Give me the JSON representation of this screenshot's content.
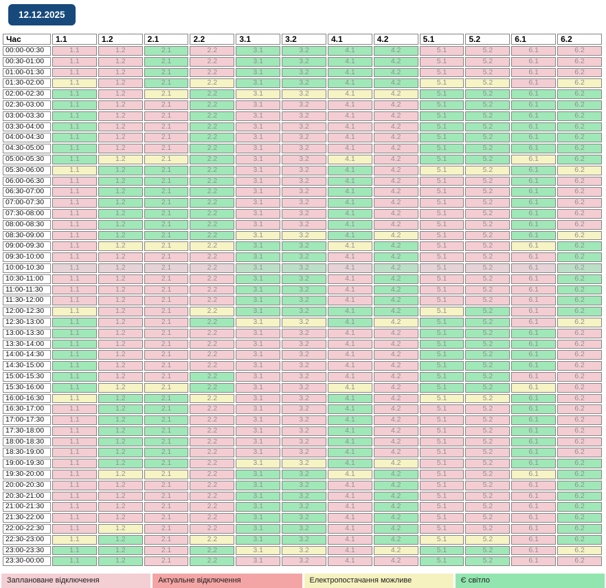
{
  "date_badge": "12.12.2025",
  "colors": {
    "badge_bg": "#17497b",
    "planned": "#f4cdd3",
    "actual": "#f2a6a6",
    "possible": "#f6f3c4",
    "light": "#a0e8b8",
    "legend_planned": "#f3ced3",
    "legend_actual": "#f3a5a5",
    "legend_possible": "#f5f2c0",
    "legend_light": "#92e5af"
  },
  "table": {
    "time_header": "Час",
    "group_headers": [
      "1.1",
      "1.2",
      "2.1",
      "2.2",
      "3.1",
      "3.2",
      "4.1",
      "4.2",
      "5.1",
      "5.2",
      "6.1",
      "6.2"
    ],
    "rows": [
      {
        "time": "00:00-00:30",
        "cells": [
          "P",
          "P",
          "G",
          "P",
          "G",
          "G",
          "G",
          "G",
          "P",
          "P",
          "P",
          "P"
        ],
        "current": false
      },
      {
        "time": "00:30-01:00",
        "cells": [
          "P",
          "P",
          "G",
          "P",
          "G",
          "G",
          "G",
          "G",
          "P",
          "P",
          "P",
          "P"
        ],
        "current": false
      },
      {
        "time": "01:00-01:30",
        "cells": [
          "P",
          "P",
          "G",
          "P",
          "G",
          "G",
          "G",
          "G",
          "P",
          "P",
          "P",
          "P"
        ],
        "current": false
      },
      {
        "time": "01:30-02:00",
        "cells": [
          "Y",
          "P",
          "G",
          "Y",
          "G",
          "G",
          "G",
          "G",
          "Y",
          "Y",
          "P",
          "Y"
        ],
        "current": false
      },
      {
        "time": "02:00-02:30",
        "cells": [
          "G",
          "P",
          "Y",
          "G",
          "Y",
          "Y",
          "Y",
          "Y",
          "G",
          "G",
          "G",
          "G"
        ],
        "current": false
      },
      {
        "time": "02:30-03:00",
        "cells": [
          "G",
          "P",
          "P",
          "G",
          "P",
          "P",
          "P",
          "P",
          "G",
          "G",
          "G",
          "G"
        ],
        "current": false
      },
      {
        "time": "03:00-03:30",
        "cells": [
          "G",
          "P",
          "P",
          "G",
          "P",
          "P",
          "P",
          "P",
          "G",
          "G",
          "G",
          "G"
        ],
        "current": false
      },
      {
        "time": "03:30-04:00",
        "cells": [
          "G",
          "P",
          "P",
          "G",
          "P",
          "P",
          "P",
          "P",
          "G",
          "G",
          "G",
          "G"
        ],
        "current": false
      },
      {
        "time": "04:00-04:30",
        "cells": [
          "G",
          "P",
          "P",
          "G",
          "P",
          "P",
          "P",
          "P",
          "G",
          "G",
          "G",
          "G"
        ],
        "current": false
      },
      {
        "time": "04:30-05:00",
        "cells": [
          "G",
          "P",
          "P",
          "G",
          "P",
          "P",
          "P",
          "P",
          "G",
          "G",
          "G",
          "G"
        ],
        "current": false
      },
      {
        "time": "05:00-05:30",
        "cells": [
          "G",
          "Y",
          "Y",
          "G",
          "P",
          "P",
          "Y",
          "P",
          "G",
          "G",
          "Y",
          "G"
        ],
        "current": false
      },
      {
        "time": "05:30-06:00",
        "cells": [
          "Y",
          "G",
          "G",
          "G",
          "P",
          "P",
          "G",
          "P",
          "Y",
          "Y",
          "G",
          "Y"
        ],
        "current": false
      },
      {
        "time": "06:00-06:30",
        "cells": [
          "P",
          "G",
          "G",
          "G",
          "P",
          "P",
          "G",
          "P",
          "P",
          "P",
          "G",
          "P"
        ],
        "current": false
      },
      {
        "time": "06:30-07:00",
        "cells": [
          "P",
          "G",
          "G",
          "G",
          "P",
          "P",
          "G",
          "P",
          "P",
          "P",
          "G",
          "P"
        ],
        "current": false
      },
      {
        "time": "07:00-07:30",
        "cells": [
          "P",
          "G",
          "G",
          "G",
          "P",
          "P",
          "G",
          "P",
          "P",
          "P",
          "G",
          "P"
        ],
        "current": false
      },
      {
        "time": "07:30-08:00",
        "cells": [
          "P",
          "G",
          "G",
          "G",
          "P",
          "P",
          "G",
          "P",
          "P",
          "P",
          "G",
          "P"
        ],
        "current": false
      },
      {
        "time": "08:00-08:30",
        "cells": [
          "P",
          "G",
          "G",
          "G",
          "P",
          "P",
          "G",
          "P",
          "P",
          "P",
          "G",
          "P"
        ],
        "current": false
      },
      {
        "time": "08:30-09:00",
        "cells": [
          "P",
          "G",
          "G",
          "G",
          "Y",
          "Y",
          "G",
          "Y",
          "P",
          "P",
          "G",
          "Y"
        ],
        "current": false
      },
      {
        "time": "09:00-09:30",
        "cells": [
          "P",
          "Y",
          "Y",
          "Y",
          "G",
          "G",
          "Y",
          "G",
          "P",
          "P",
          "Y",
          "G"
        ],
        "current": false
      },
      {
        "time": "09:30-10:00",
        "cells": [
          "P",
          "P",
          "P",
          "P",
          "G",
          "G",
          "P",
          "G",
          "P",
          "P",
          "P",
          "G"
        ],
        "current": false
      },
      {
        "time": "10:00-10:30",
        "cells": [
          "P",
          "P",
          "P",
          "P",
          "G",
          "G",
          "P",
          "G",
          "P",
          "P",
          "P",
          "G"
        ],
        "current": true
      },
      {
        "time": "10:30-11:00",
        "cells": [
          "P",
          "P",
          "P",
          "P",
          "G",
          "G",
          "P",
          "G",
          "P",
          "P",
          "P",
          "G"
        ],
        "current": false
      },
      {
        "time": "11:00-11:30",
        "cells": [
          "P",
          "P",
          "P",
          "P",
          "G",
          "G",
          "P",
          "G",
          "P",
          "P",
          "P",
          "G"
        ],
        "current": false
      },
      {
        "time": "11:30-12:00",
        "cells": [
          "P",
          "P",
          "P",
          "P",
          "G",
          "G",
          "P",
          "G",
          "P",
          "P",
          "P",
          "G"
        ],
        "current": false
      },
      {
        "time": "12:00-12:30",
        "cells": [
          "Y",
          "P",
          "P",
          "Y",
          "G",
          "G",
          "G",
          "G",
          "Y",
          "G",
          "P",
          "G"
        ],
        "current": false
      },
      {
        "time": "12:30-13:00",
        "cells": [
          "G",
          "P",
          "P",
          "G",
          "Y",
          "Y",
          "G",
          "Y",
          "G",
          "G",
          "P",
          "Y"
        ],
        "current": false
      },
      {
        "time": "13:00-13:30",
        "cells": [
          "G",
          "P",
          "P",
          "P",
          "P",
          "P",
          "P",
          "P",
          "G",
          "G",
          "G",
          "P"
        ],
        "current": false
      },
      {
        "time": "13:30-14:00",
        "cells": [
          "G",
          "P",
          "P",
          "P",
          "P",
          "P",
          "P",
          "P",
          "G",
          "G",
          "G",
          "P"
        ],
        "current": false
      },
      {
        "time": "14:00-14:30",
        "cells": [
          "G",
          "P",
          "P",
          "P",
          "P",
          "P",
          "P",
          "P",
          "G",
          "G",
          "G",
          "P"
        ],
        "current": false
      },
      {
        "time": "14:30-15:00",
        "cells": [
          "G",
          "P",
          "P",
          "P",
          "P",
          "P",
          "P",
          "P",
          "G",
          "G",
          "G",
          "P"
        ],
        "current": false
      },
      {
        "time": "15:00-15:30",
        "cells": [
          "G",
          "P",
          "P",
          "G",
          "P",
          "P",
          "P",
          "P",
          "G",
          "G",
          "P",
          "P"
        ],
        "current": false
      },
      {
        "time": "15:30-16:00",
        "cells": [
          "G",
          "Y",
          "Y",
          "G",
          "P",
          "P",
          "Y",
          "P",
          "G",
          "G",
          "Y",
          "P"
        ],
        "current": false
      },
      {
        "time": "16:00-16:30",
        "cells": [
          "Y",
          "G",
          "G",
          "Y",
          "P",
          "P",
          "G",
          "P",
          "Y",
          "Y",
          "G",
          "P"
        ],
        "current": false
      },
      {
        "time": "16:30-17:00",
        "cells": [
          "P",
          "G",
          "G",
          "P",
          "P",
          "P",
          "G",
          "P",
          "P",
          "P",
          "G",
          "P"
        ],
        "current": false
      },
      {
        "time": "17:00-17:30",
        "cells": [
          "P",
          "G",
          "G",
          "P",
          "P",
          "P",
          "G",
          "P",
          "P",
          "P",
          "G",
          "P"
        ],
        "current": false
      },
      {
        "time": "17:30-18:00",
        "cells": [
          "P",
          "G",
          "G",
          "P",
          "P",
          "P",
          "G",
          "P",
          "P",
          "P",
          "G",
          "P"
        ],
        "current": false
      },
      {
        "time": "18:00-18:30",
        "cells": [
          "P",
          "G",
          "G",
          "P",
          "P",
          "P",
          "G",
          "P",
          "P",
          "P",
          "G",
          "P"
        ],
        "current": false
      },
      {
        "time": "18:30-19:00",
        "cells": [
          "P",
          "G",
          "G",
          "P",
          "P",
          "P",
          "G",
          "P",
          "P",
          "P",
          "G",
          "P"
        ],
        "current": false
      },
      {
        "time": "19:00-19:30",
        "cells": [
          "P",
          "G",
          "G",
          "P",
          "Y",
          "Y",
          "G",
          "Y",
          "P",
          "P",
          "G",
          "G"
        ],
        "current": false
      },
      {
        "time": "19:30-20:00",
        "cells": [
          "P",
          "Y",
          "Y",
          "P",
          "G",
          "G",
          "Y",
          "G",
          "P",
          "P",
          "Y",
          "G"
        ],
        "current": false
      },
      {
        "time": "20:00-20:30",
        "cells": [
          "P",
          "P",
          "P",
          "P",
          "G",
          "G",
          "P",
          "G",
          "P",
          "P",
          "P",
          "G"
        ],
        "current": false
      },
      {
        "time": "20:30-21:00",
        "cells": [
          "P",
          "P",
          "P",
          "P",
          "G",
          "G",
          "P",
          "G",
          "P",
          "P",
          "P",
          "G"
        ],
        "current": false
      },
      {
        "time": "21:00-21:30",
        "cells": [
          "P",
          "P",
          "P",
          "P",
          "G",
          "G",
          "P",
          "G",
          "P",
          "P",
          "P",
          "G"
        ],
        "current": false
      },
      {
        "time": "21:30-22:00",
        "cells": [
          "P",
          "P",
          "P",
          "P",
          "G",
          "G",
          "P",
          "G",
          "P",
          "P",
          "P",
          "G"
        ],
        "current": false
      },
      {
        "time": "22:00-22:30",
        "cells": [
          "P",
          "Y",
          "P",
          "P",
          "G",
          "G",
          "P",
          "G",
          "P",
          "P",
          "P",
          "G"
        ],
        "current": false
      },
      {
        "time": "22:30-23:00",
        "cells": [
          "Y",
          "G",
          "P",
          "Y",
          "G",
          "G",
          "P",
          "G",
          "Y",
          "Y",
          "P",
          "G"
        ],
        "current": false
      },
      {
        "time": "23:00-23:30",
        "cells": [
          "G",
          "G",
          "P",
          "G",
          "Y",
          "Y",
          "P",
          "Y",
          "G",
          "G",
          "P",
          "Y"
        ],
        "current": false
      },
      {
        "time": "23:30-00:00",
        "cells": [
          "G",
          "G",
          "P",
          "G",
          "P",
          "P",
          "P",
          "P",
          "G",
          "G",
          "P",
          "P"
        ],
        "current": false
      }
    ]
  },
  "legend": [
    {
      "label": "Заплановане відключення",
      "type": "planned"
    },
    {
      "label": "Актуальне відключення",
      "type": "actual"
    },
    {
      "label": "Електропостачання можливе",
      "type": "possible"
    },
    {
      "label": "Є світло",
      "type": "light"
    }
  ]
}
